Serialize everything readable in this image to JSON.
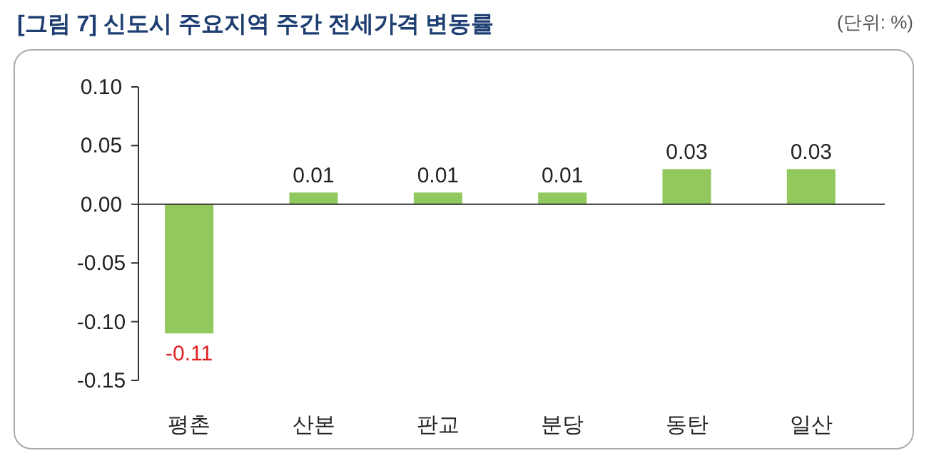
{
  "chart_data": {
    "type": "bar",
    "title": "[그림 7] 신도시 주요지역 주간 전세가격 변동률",
    "annotations": [
      "(단위: %)"
    ],
    "categories": [
      "평촌",
      "산본",
      "판교",
      "분당",
      "동탄",
      "일산"
    ],
    "values": [
      -0.11,
      0.01,
      0.01,
      0.01,
      0.03,
      0.03
    ],
    "color": "#92c95f",
    "ylim": [
      -0.15,
      0.1
    ],
    "yticks": [
      {
        "value": 0.1,
        "label": "0.10"
      },
      {
        "value": 0.05,
        "label": "0.05"
      },
      {
        "value": 0,
        "label": "0.00"
      },
      {
        "value": -0.05,
        "label": "-0.05"
      },
      {
        "value": -0.1,
        "label": "-0.10"
      },
      {
        "value": -0.15,
        "label": "-0.15"
      }
    ],
    "data_labels": true
  }
}
